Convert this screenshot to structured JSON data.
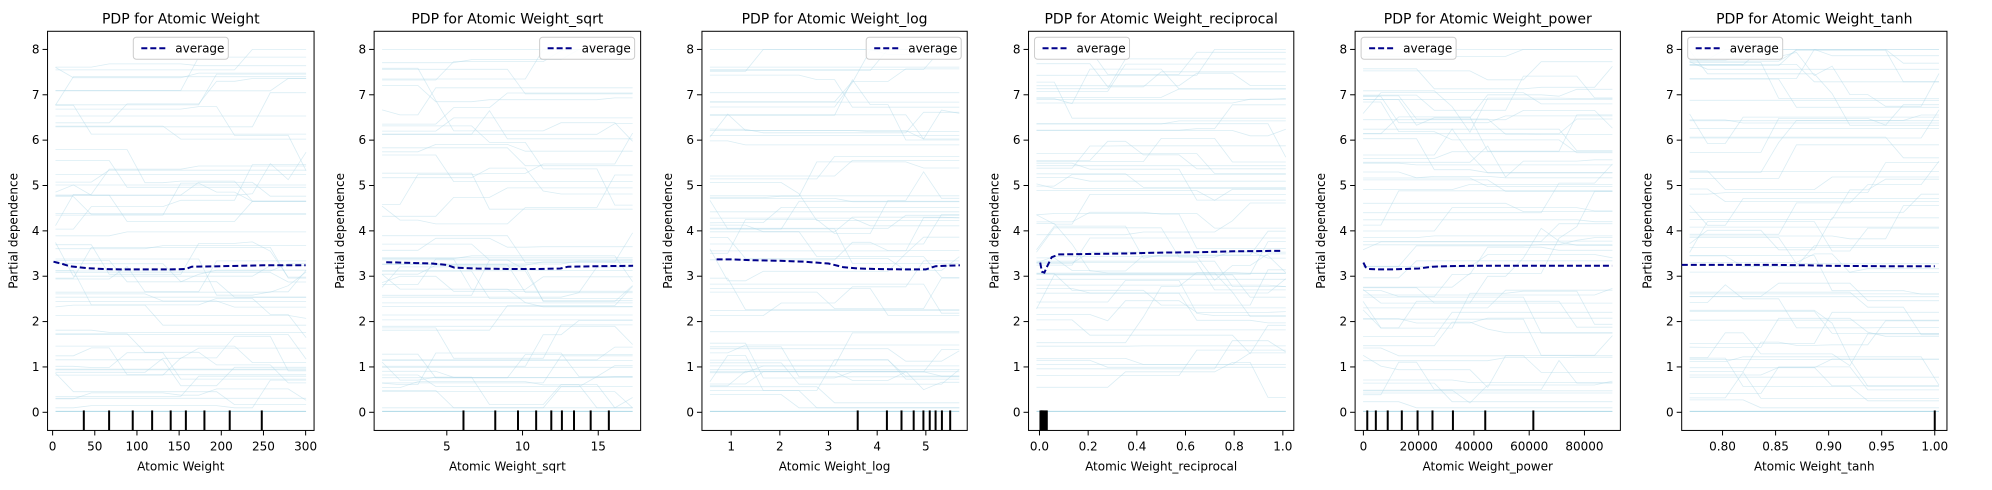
{
  "chart_data": [
    {
      "type": "line",
      "title": "PDP for Atomic Weight",
      "xlabel": "Atomic Weight",
      "ylabel": "Partial dependence",
      "xlim": [
        -6,
        310
      ],
      "ylim": [
        -0.4,
        8.4
      ],
      "xticks": [
        0,
        50,
        100,
        150,
        200,
        250,
        300
      ],
      "xtick_labels": [
        "0",
        "50",
        "100",
        "150",
        "200",
        "250",
        "300"
      ],
      "yticks": [
        0,
        1,
        2,
        3,
        4,
        5,
        6,
        7,
        8
      ],
      "ytick_labels": [
        "0",
        "1",
        "2",
        "3",
        "4",
        "5",
        "6",
        "7",
        "8"
      ],
      "grid": false,
      "legend": {
        "placement": "top-center",
        "entries": [
          "average"
        ]
      },
      "colors": {
        "average": "#00008b",
        "ice": "#add8e6"
      },
      "series": [
        {
          "name": "average",
          "style": "dashed",
          "x": [
            1,
            10,
            20,
            40,
            60,
            80,
            100,
            120,
            140,
            158,
            165,
            200,
            250,
            300
          ],
          "y": [
            3.32,
            3.28,
            3.22,
            3.18,
            3.16,
            3.15,
            3.15,
            3.15,
            3.15,
            3.16,
            3.21,
            3.22,
            3.24,
            3.24
          ]
        }
      ],
      "rug": [
        37,
        67,
        95,
        118,
        140,
        158,
        180,
        210,
        248
      ]
    },
    {
      "type": "line",
      "title": "PDP for Atomic Weight_sqrt",
      "xlabel": "Atomic Weight_sqrt",
      "ylabel": "Partial dependence",
      "xlim": [
        0.2,
        17.8
      ],
      "ylim": [
        -0.4,
        8.4
      ],
      "xticks": [
        5,
        10,
        15
      ],
      "xtick_labels": [
        "5",
        "10",
        "15"
      ],
      "yticks": [
        0,
        1,
        2,
        3,
        4,
        5,
        6,
        7,
        8
      ],
      "ytick_labels": [
        "0",
        "1",
        "2",
        "3",
        "4",
        "5",
        "6",
        "7",
        "8"
      ],
      "grid": false,
      "legend": {
        "placement": "top-right",
        "entries": [
          "average"
        ]
      },
      "colors": {
        "average": "#00008b",
        "ice": "#add8e6"
      },
      "series": [
        {
          "name": "average",
          "style": "dashed",
          "x": [
            1,
            2,
            3,
            4,
            5,
            5.5,
            7,
            9,
            11,
            12.5,
            13,
            15,
            17.3
          ],
          "y": [
            3.31,
            3.3,
            3.29,
            3.28,
            3.25,
            3.19,
            3.17,
            3.16,
            3.16,
            3.17,
            3.21,
            3.22,
            3.23
          ]
        }
      ],
      "rug": [
        6.1,
        8.2,
        9.7,
        10.9,
        11.9,
        12.6,
        13.4,
        14.5,
        15.7
      ]
    },
    {
      "type": "line",
      "title": "PDP for Atomic Weight_log",
      "xlabel": "Atomic Weight_log",
      "ylabel": "Partial dependence",
      "xlim": [
        0.4,
        5.85
      ],
      "ylim": [
        -0.4,
        8.4
      ],
      "xticks": [
        1,
        2,
        3,
        4,
        5
      ],
      "xtick_labels": [
        "1",
        "2",
        "3",
        "4",
        "5"
      ],
      "yticks": [
        0,
        1,
        2,
        3,
        4,
        5,
        6,
        7,
        8
      ],
      "ytick_labels": [
        "0",
        "1",
        "2",
        "3",
        "4",
        "5",
        "6",
        "7",
        "8"
      ],
      "grid": false,
      "legend": {
        "placement": "top-right",
        "entries": [
          "average"
        ]
      },
      "colors": {
        "average": "#00008b",
        "ice": "#add8e6"
      },
      "series": [
        {
          "name": "average",
          "style": "dashed",
          "x": [
            0.7,
            1.0,
            1.5,
            2.0,
            2.5,
            3.0,
            3.3,
            3.6,
            4.0,
            4.5,
            5.0,
            5.2,
            5.7
          ],
          "y": [
            3.37,
            3.37,
            3.35,
            3.34,
            3.32,
            3.28,
            3.2,
            3.17,
            3.16,
            3.15,
            3.15,
            3.22,
            3.24
          ]
        }
      ],
      "rug": [
        3.6,
        4.2,
        4.5,
        4.75,
        4.95,
        5.08,
        5.2,
        5.33,
        5.5
      ]
    },
    {
      "type": "line",
      "title": "PDP for Atomic Weight_reciprocal",
      "xlabel": "Atomic Weight_reciprocal",
      "ylabel": "Partial dependence",
      "xlim": [
        -0.045,
        1.045
      ],
      "ylim": [
        -0.4,
        8.4
      ],
      "xticks": [
        0.0,
        0.2,
        0.4,
        0.6,
        0.8,
        1.0
      ],
      "xtick_labels": [
        "0.0",
        "0.2",
        "0.4",
        "0.6",
        "0.8",
        "1.0"
      ],
      "yticks": [
        0,
        1,
        2,
        3,
        4,
        5,
        6,
        7,
        8
      ],
      "ytick_labels": [
        "0",
        "1",
        "2",
        "3",
        "4",
        "5",
        "6",
        "7",
        "8"
      ],
      "grid": false,
      "legend": {
        "placement": "top-left",
        "entries": [
          "average"
        ]
      },
      "colors": {
        "average": "#00008b",
        "ice": "#add8e6"
      },
      "series": [
        {
          "name": "average",
          "style": "dashed",
          "x": [
            0.003,
            0.01,
            0.02,
            0.03,
            0.05,
            0.08,
            0.2,
            0.35,
            0.5,
            0.65,
            0.8,
            1.0
          ],
          "y": [
            3.3,
            3.1,
            3.08,
            3.2,
            3.42,
            3.48,
            3.49,
            3.5,
            3.52,
            3.53,
            3.55,
            3.56
          ]
        }
      ],
      "rug": [
        0.004,
        0.006,
        0.008,
        0.01,
        0.012,
        0.015,
        0.018,
        0.022,
        0.027,
        0.03
      ]
    },
    {
      "type": "line",
      "title": "PDP for Atomic Weight_power",
      "xlabel": "Atomic Weight_power",
      "ylabel": "Partial dependence",
      "xlim": [
        -3000,
        93000
      ],
      "ylim": [
        -0.4,
        8.4
      ],
      "xticks": [
        0,
        20000,
        40000,
        60000,
        80000
      ],
      "xtick_labels": [
        "0",
        "20000",
        "40000",
        "60000",
        "80000"
      ],
      "yticks": [
        0,
        1,
        2,
        3,
        4,
        5,
        6,
        7,
        8
      ],
      "ytick_labels": [
        "0",
        "1",
        "2",
        "3",
        "4",
        "5",
        "6",
        "7",
        "8"
      ],
      "grid": false,
      "legend": {
        "placement": "top-left",
        "entries": [
          "average"
        ]
      },
      "colors": {
        "average": "#00008b",
        "ice": "#add8e6"
      },
      "series": [
        {
          "name": "average",
          "style": "dashed",
          "x": [
            1,
            800,
            2000,
            5000,
            10000,
            20000,
            25000,
            30000,
            40000,
            60000,
            90000
          ],
          "y": [
            3.3,
            3.2,
            3.16,
            3.15,
            3.15,
            3.17,
            3.21,
            3.22,
            3.23,
            3.23,
            3.23
          ]
        }
      ],
      "rug": [
        1400,
        4500,
        8800,
        13900,
        19600,
        25000,
        32400,
        44100,
        61500
      ]
    },
    {
      "type": "line",
      "title": "PDP for Atomic Weight_tanh",
      "xlabel": "Atomic Weight_tanh",
      "ylabel": "Partial dependence",
      "xlim": [
        0.7615,
        1.0115
      ],
      "ylim": [
        -0.4,
        8.4
      ],
      "xticks": [
        0.8,
        0.85,
        0.9,
        0.95,
        1.0
      ],
      "xtick_labels": [
        "0.80",
        "0.85",
        "0.90",
        "0.95",
        "1.00"
      ],
      "yticks": [
        0,
        1,
        2,
        3,
        4,
        5,
        6,
        7,
        8
      ],
      "ytick_labels": [
        "0",
        "1",
        "2",
        "3",
        "4",
        "5",
        "6",
        "7",
        "8"
      ],
      "grid": false,
      "legend": {
        "placement": "top-left",
        "entries": [
          "average"
        ]
      },
      "colors": {
        "average": "#00008b",
        "ice": "#add8e6"
      },
      "series": [
        {
          "name": "average",
          "style": "dashed",
          "x": [
            0.7616,
            0.8,
            0.85,
            0.88,
            0.9,
            0.95,
            1.0
          ],
          "y": [
            3.25,
            3.25,
            3.25,
            3.24,
            3.23,
            3.22,
            3.22
          ]
        }
      ],
      "rug": [
        1.0
      ]
    }
  ]
}
